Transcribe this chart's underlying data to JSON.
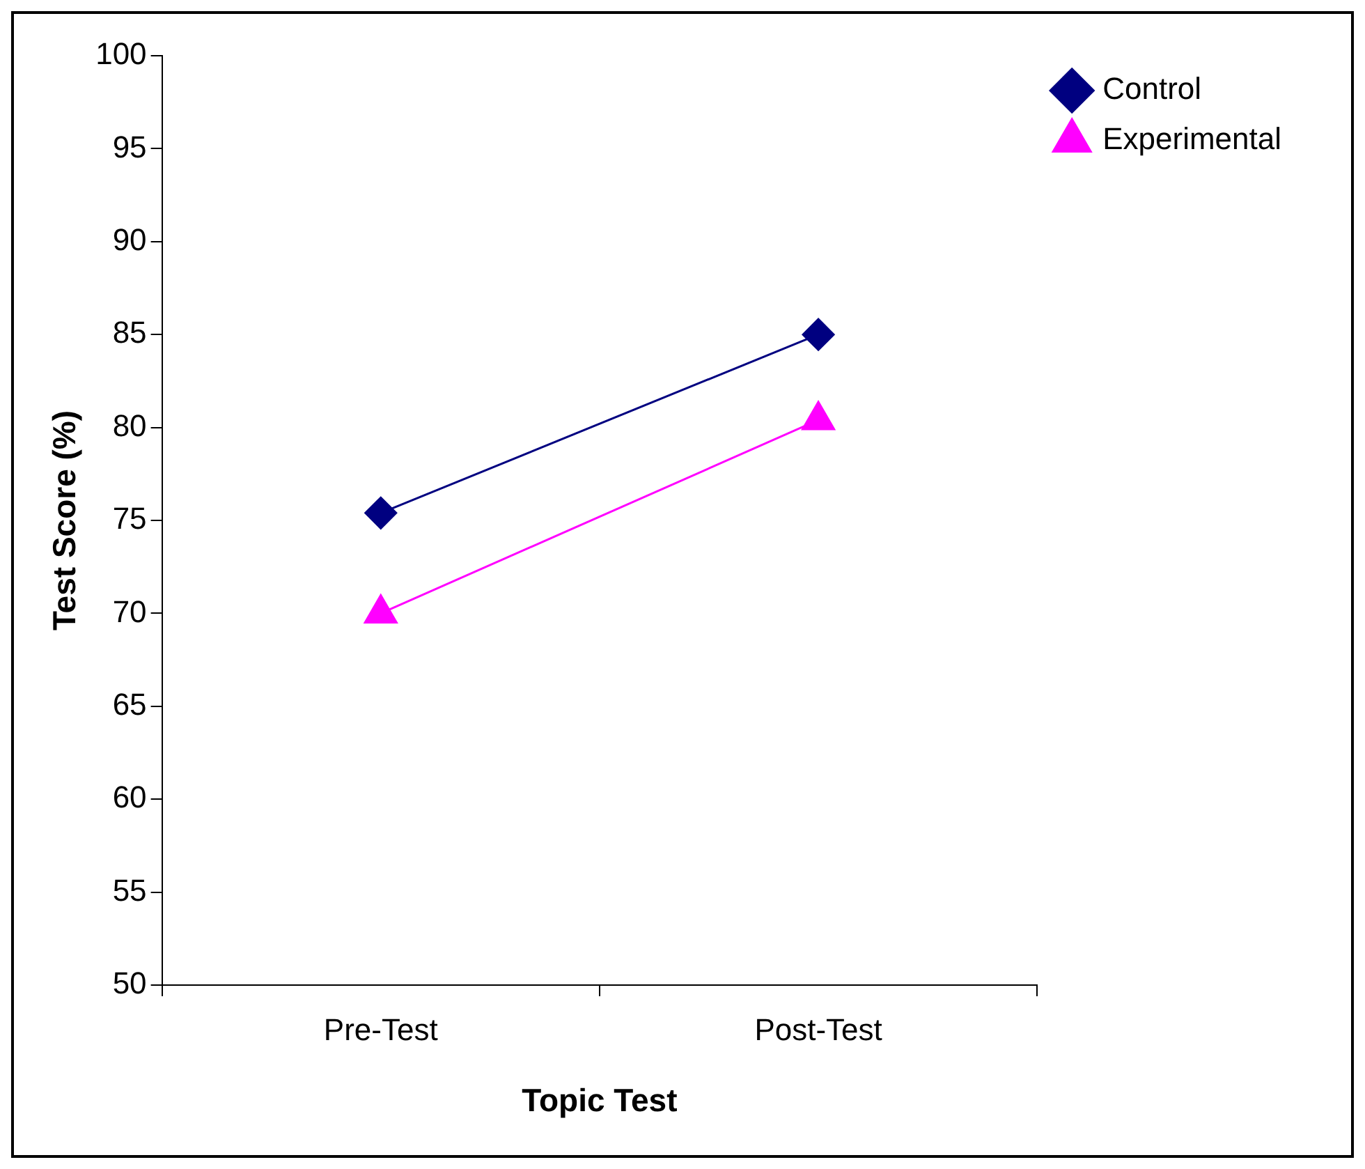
{
  "chart_data": {
    "type": "line",
    "xlabel": "Topic Test",
    "ylabel": "Test Score (%)",
    "categories": [
      "Pre-Test",
      "Post-Test"
    ],
    "series": [
      {
        "name": "Control",
        "color": "#000080",
        "values": [
          75.4,
          85
        ],
        "marker": "diamond"
      },
      {
        "name": "Experimental",
        "color": "#ff00ff",
        "values": [
          70,
          80.4
        ],
        "marker": "triangle"
      }
    ],
    "ylim": [
      50,
      100
    ],
    "yticks": [
      50,
      55,
      60,
      65,
      70,
      75,
      80,
      85,
      90,
      95,
      100
    ],
    "grid": false,
    "legend": "right",
    "line_style": "solid"
  }
}
